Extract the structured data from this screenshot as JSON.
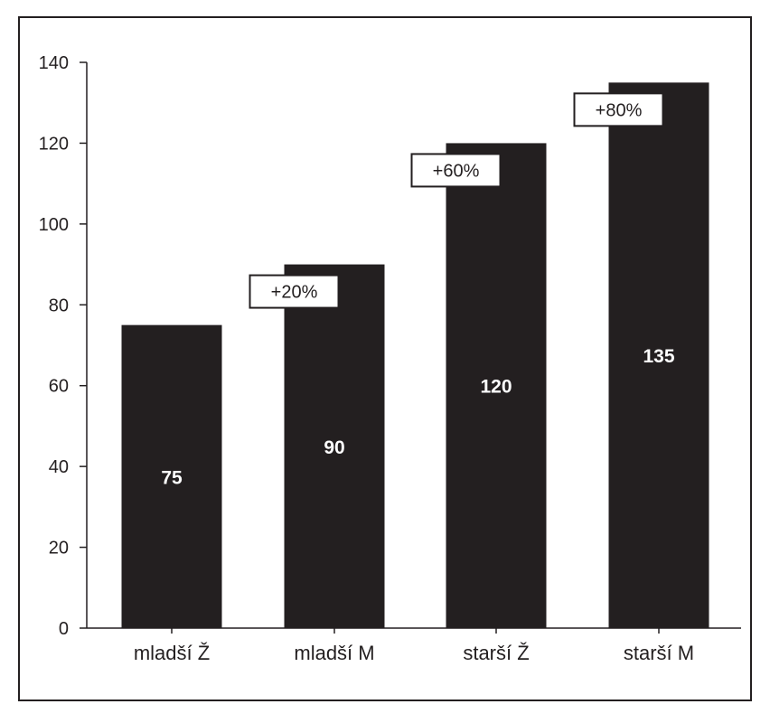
{
  "chart_data": {
    "type": "bar",
    "categories": [
      "mladší Ž",
      "mladší M",
      "starší Ž",
      "starší M"
    ],
    "values": [
      75,
      90,
      120,
      135
    ],
    "value_labels": [
      "75",
      "90",
      "120",
      "135"
    ],
    "change_labels": [
      "",
      "+20%",
      "+60%",
      "+80%"
    ],
    "yticks": [
      0,
      20,
      40,
      60,
      80,
      100,
      120,
      140
    ],
    "ylim": [
      0,
      140
    ],
    "title": "",
    "xlabel": "",
    "ylabel": "",
    "grid": false,
    "legend": "none",
    "colors": {
      "bar": "#231f20",
      "axis": "#231f20",
      "background": "#ffffff"
    }
  }
}
